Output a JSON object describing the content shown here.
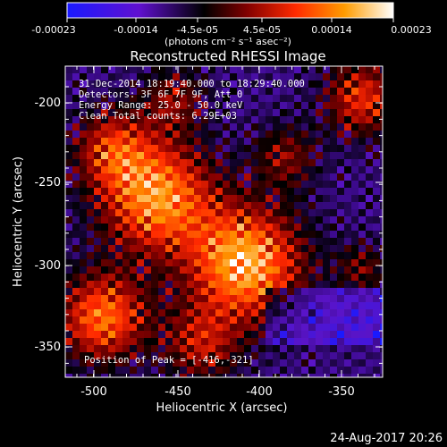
{
  "colorbar": {
    "tick_labels": [
      "-0.00023",
      "-0.00014",
      "-4.5e-05",
      "4.5e-05",
      "0.00014",
      "0.00023"
    ],
    "unit_label": "(photons cm⁻² s⁻¹ asec⁻²)",
    "colors": [
      "#1a1aff",
      "#5a00c8",
      "#000000",
      "#8b0000",
      "#ff3000",
      "#ff9a00",
      "#ffffff"
    ]
  },
  "plot": {
    "title": "Reconstructed RHESSI Image",
    "xlabel": "Heliocentric X (arcsec)",
    "ylabel": "Heliocentric Y (arcsec)",
    "x_ticks": [
      "-500",
      "-450",
      "-400",
      "-350"
    ],
    "y_ticks": [
      "-200",
      "-250",
      "-300",
      "-350"
    ],
    "info_lines": [
      "31-Dec-2014 18:19:40.000 to 18:29:40.000",
      "Detectors: 3F 6F 7F 9F, Att 0",
      "Energy Range: 25.0 - 50.0 keV",
      "Clean     Total counts: 6.29E+03"
    ],
    "peak_label": "Position of Peak = [-416,-321]"
  },
  "footer": {
    "timestamp": "24-Aug-2017 20:26"
  }
}
